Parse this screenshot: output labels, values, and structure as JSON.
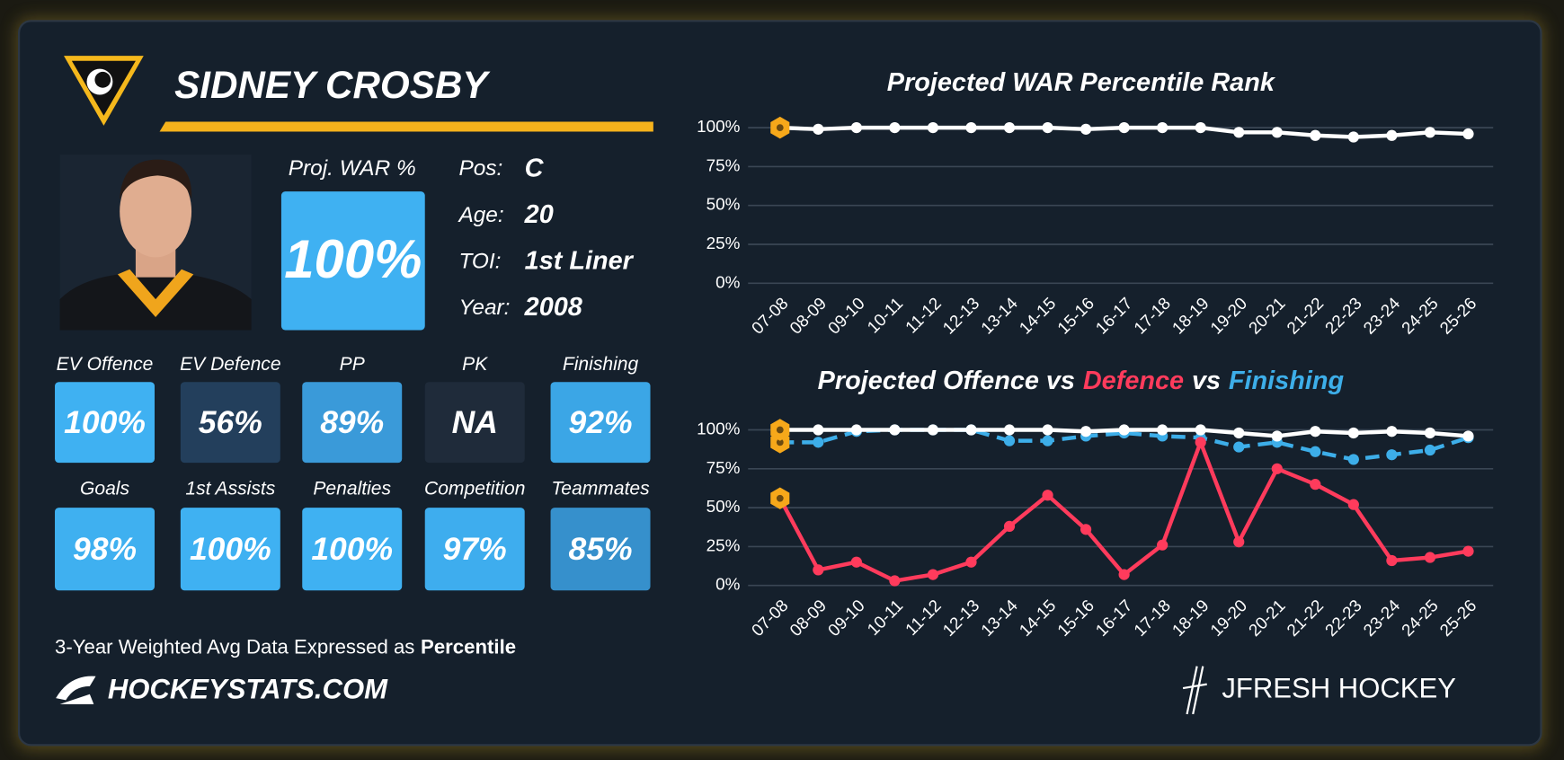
{
  "player": {
    "name": "SIDNEY CROSBY",
    "war_label": "Proj. WAR %",
    "war_value": "100%",
    "war_color": "#3fb1f2",
    "info": [
      {
        "label": "Pos:",
        "value": "C"
      },
      {
        "label": "Age:",
        "value": "20"
      },
      {
        "label": "TOI:",
        "value": "1st Liner"
      },
      {
        "label": "Year:",
        "value": "2008"
      }
    ],
    "tiles": [
      {
        "label": "EV Offence",
        "value": "100%",
        "color": "#3fb1f2"
      },
      {
        "label": "EV Defence",
        "value": "56%",
        "color": "#233f5c"
      },
      {
        "label": "PP",
        "value": "89%",
        "color": "#3a9ad9"
      },
      {
        "label": "PK",
        "value": "NA",
        "color": "#1f2b3a"
      },
      {
        "label": "Finishing",
        "value": "92%",
        "color": "#3ba6e6"
      },
      {
        "label": "Goals",
        "value": "98%",
        "color": "#3fb0f0"
      },
      {
        "label": "1st Assists",
        "value": "100%",
        "color": "#3fb1f2"
      },
      {
        "label": "Penalties",
        "value": "100%",
        "color": "#3fb1f2"
      },
      {
        "label": "Competition",
        "value": "97%",
        "color": "#3eadee"
      },
      {
        "label": "Teammates",
        "value": "85%",
        "color": "#3690cc"
      }
    ]
  },
  "footer": {
    "note": "3-Year Weighted Avg Data Expressed as",
    "note_bold": "Percentile",
    "site": "HOCKEYSTATS.COM",
    "credit": "JFRESH HOCKEY"
  },
  "chart_data": [
    {
      "type": "line",
      "title": "Projected WAR Percentile Rank",
      "categories": [
        "07-08",
        "08-09",
        "09-10",
        "10-11",
        "11-12",
        "12-13",
        "13-14",
        "14-15",
        "15-16",
        "16-17",
        "17-18",
        "18-19",
        "19-20",
        "20-21",
        "21-22",
        "22-23",
        "23-24",
        "24-25",
        "25-26"
      ],
      "values": [
        100,
        99,
        100,
        100,
        100,
        100,
        100,
        100,
        99,
        100,
        100,
        100,
        97,
        97,
        95,
        94,
        95,
        97,
        96
      ],
      "color": "#ffffff",
      "highlight_color": "#f6a81a",
      "ylim": [
        0,
        100
      ],
      "yticks": [
        {
          "value": 0,
          "label": "0%"
        },
        {
          "value": 25,
          "label": "25%"
        },
        {
          "value": 50,
          "label": "50%"
        },
        {
          "value": 75,
          "label": "75%"
        },
        {
          "value": 100,
          "label": "100%"
        }
      ],
      "grid": true
    },
    {
      "type": "line",
      "title_parts": [
        {
          "text": "Projected Offence vs",
          "color": "#ffffff"
        },
        {
          "text": "Defence",
          "color": "#ff3b5c"
        },
        {
          "text": "vs",
          "color": "#ffffff"
        },
        {
          "text": "Finishing",
          "color": "#3daee9"
        }
      ],
      "categories": [
        "07-08",
        "08-09",
        "09-10",
        "10-11",
        "11-12",
        "12-13",
        "13-14",
        "14-15",
        "15-16",
        "16-17",
        "17-18",
        "18-19",
        "19-20",
        "20-21",
        "21-22",
        "22-23",
        "23-24",
        "24-25",
        "25-26"
      ],
      "series": [
        {
          "color": "#ffffff",
          "line_style": "solid",
          "values": [
            100,
            100,
            100,
            100,
            100,
            100,
            100,
            100,
            99,
            100,
            100,
            100,
            98,
            96,
            99,
            98,
            99,
            98,
            96
          ]
        },
        {
          "color": "#ff3b5c",
          "line_style": "solid",
          "values": [
            56,
            10,
            15,
            3,
            7,
            15,
            38,
            58,
            36,
            7,
            26,
            92,
            28,
            75,
            65,
            52,
            16,
            18,
            22
          ]
        },
        {
          "color": "#3daee9",
          "line_style": "dashed",
          "values": [
            92,
            92,
            99,
            100,
            100,
            100,
            93,
            93,
            96,
            98,
            96,
            95,
            89,
            92,
            86,
            81,
            84,
            87,
            95
          ]
        }
      ],
      "highlight_color": "#f6a81a",
      "ylim": [
        0,
        100
      ],
      "yticks": [
        {
          "value": 0,
          "label": "0%"
        },
        {
          "value": 25,
          "label": "25%"
        },
        {
          "value": 50,
          "label": "50%"
        },
        {
          "value": 75,
          "label": "75%"
        },
        {
          "value": 100,
          "label": "100%"
        }
      ],
      "grid": true
    }
  ]
}
